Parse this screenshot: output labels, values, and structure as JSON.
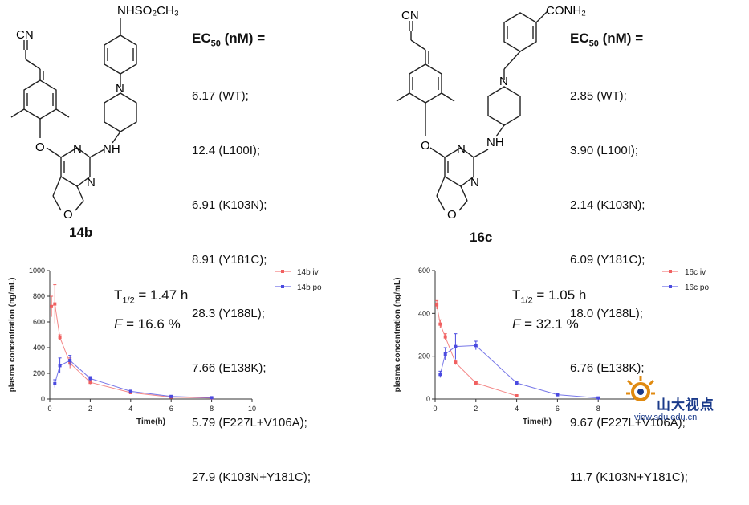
{
  "compound_a": {
    "label": "14b",
    "ec50_title": "EC",
    "ec50_sub": "50",
    "ec50_unit": " (nM) =",
    "ec50_values": [
      "6.17 (WT);",
      "12.4 (L100I);",
      "6.91 (K103N);",
      "8.91 (Y181C);",
      "28.3 (Y188L);",
      "7.66 (E138K);",
      "5.79 (F227L+V106A);",
      "27.9 (K103N+Y181C);"
    ],
    "groups": {
      "top": "NHSO₂CH₃",
      "nitrile": "CN",
      "nh": "NH",
      "n": "N",
      "o": "O"
    }
  },
  "compound_b": {
    "label": "16c",
    "ec50_title": "EC",
    "ec50_sub": "50",
    "ec50_unit": " (nM) =",
    "ec50_values": [
      "2.85 (WT);",
      "3.90 (L100I);",
      "2.14 (K103N);",
      "6.09 (Y181C);",
      "18.0 (Y188L);",
      "6.76 (E138K);",
      "9.67 (F227L+V106A);",
      "11.7 (K103N+Y181C);"
    ],
    "groups": {
      "top": "CONH₂",
      "nitrile": "CN",
      "nh": "NH",
      "n": "N",
      "o": "O"
    }
  },
  "chart_data": [
    {
      "type": "line",
      "xlabel": "Time(h)",
      "ylabel": "plasma concentration (ng/mL)",
      "xlim": [
        0,
        10
      ],
      "ylim": [
        0,
        1000
      ],
      "xticks": [
        0,
        2,
        4,
        6,
        8,
        10
      ],
      "yticks": [
        0,
        200,
        400,
        600,
        800,
        1000
      ],
      "half_life_prefix": "T",
      "half_life_sub": "1/2",
      "half_life_value": " = 1.47 h",
      "f_symbol": "F",
      "f_value": " = 16.6 %",
      "series": [
        {
          "name": "14b iv",
          "color": "#f06060",
          "x": [
            0.083,
            0.25,
            0.5,
            1,
            2,
            4,
            6,
            8
          ],
          "y": [
            720,
            740,
            480,
            280,
            130,
            50,
            15,
            8
          ],
          "err": [
            80,
            150,
            20,
            40,
            15,
            8,
            5,
            3
          ]
        },
        {
          "name": "14b po",
          "color": "#4a4ae0",
          "x": [
            0.25,
            0.5,
            1,
            2,
            4,
            6,
            8
          ],
          "y": [
            120,
            260,
            300,
            160,
            60,
            20,
            10
          ],
          "err": [
            30,
            60,
            40,
            15,
            8,
            5,
            3
          ]
        }
      ]
    },
    {
      "type": "line",
      "xlabel": "Time(h)",
      "ylabel": "plasma concentration (ng/mL)",
      "xlim": [
        0,
        10
      ],
      "ylim": [
        0,
        600
      ],
      "xticks": [
        0,
        2,
        4,
        6,
        8
      ],
      "yticks": [
        0,
        200,
        400,
        600
      ],
      "half_life_prefix": "T",
      "half_life_sub": "1/2",
      "half_life_value": " = 1.05 h",
      "f_symbol": "F",
      "f_value": " = 32.1 %",
      "series": [
        {
          "name": "16c iv",
          "color": "#f06060",
          "x": [
            0.083,
            0.25,
            0.5,
            1,
            2,
            4
          ],
          "y": [
            440,
            350,
            290,
            170,
            75,
            15
          ],
          "err": [
            20,
            20,
            15,
            10,
            5,
            3
          ]
        },
        {
          "name": "16c po",
          "color": "#4a4ae0",
          "x": [
            0.25,
            0.5,
            1,
            2,
            4,
            6,
            8
          ],
          "y": [
            115,
            210,
            245,
            250,
            75,
            20,
            5
          ],
          "err": [
            15,
            30,
            60,
            20,
            8,
            4,
            2
          ]
        }
      ]
    }
  ]
}
